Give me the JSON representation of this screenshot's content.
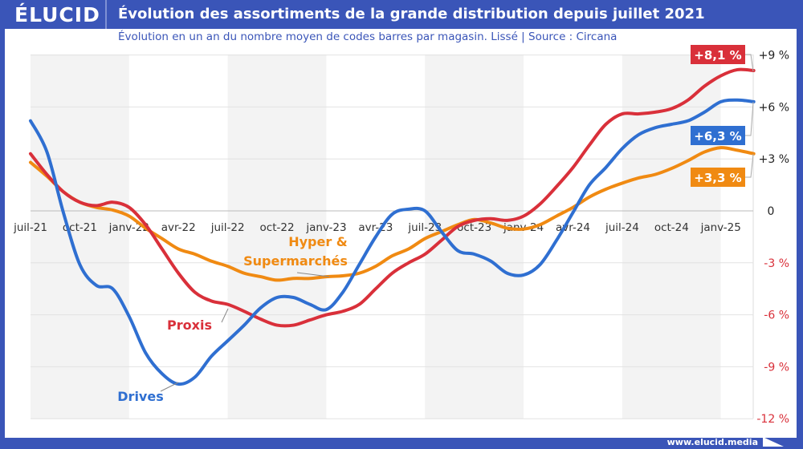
{
  "header": {
    "logo": "ÉLUCID",
    "title": "Évolution des assortiments de la grande distribution depuis juillet 2021"
  },
  "subtitle": "Évolution en un an du nombre moyen de codes barres par magasin. Lissé  |  Source : Circana",
  "footer": "www.elucid.media",
  "chart_data": {
    "type": "line",
    "title": "Évolution des assortiments de la grande distribution depuis juillet 2021",
    "subtitle": "Évolution en un an du nombre moyen de codes barres par magasin. Lissé  |  Source : Circana",
    "x_ticks": [
      "juil-21",
      "oct-21",
      "janv-22",
      "avr-22",
      "juil-22",
      "oct-22",
      "janv-23",
      "avr-23",
      "juil-23",
      "oct-23",
      "janv-24",
      "avr-24",
      "juil-24",
      "oct-24",
      "janv-25"
    ],
    "x_start": "juil-21",
    "x_end": "mars-25",
    "x_step": "month",
    "y_ticks": [
      "+9 %",
      "+6 %",
      "+3 %",
      "0",
      "-3 %",
      "-6 %",
      "-9 %",
      "-12 %"
    ],
    "ylim": [
      -12,
      9
    ],
    "y_axis_position": "right",
    "grid": true,
    "series": [
      {
        "name": "Drives",
        "color": "#2f6fd1",
        "end_label": "+6,3 %",
        "values": [
          5.2,
          3.4,
          -0.1,
          -3.1,
          -4.3,
          -4.5,
          -6.1,
          -8.2,
          -9.4,
          -10.0,
          -9.6,
          -8.4,
          -7.5,
          -6.6,
          -5.6,
          -5.0,
          -5.0,
          -5.4,
          -5.7,
          -4.7,
          -3.1,
          -1.5,
          -0.2,
          0.1,
          0.0,
          -1.2,
          -2.3,
          -2.5,
          -2.9,
          -3.6,
          -3.7,
          -3.1,
          -1.7,
          -0.1,
          1.5,
          2.5,
          3.6,
          4.4,
          4.8,
          5.0,
          5.2,
          5.7,
          6.3,
          6.4,
          6.3
        ]
      },
      {
        "name": "Proxis",
        "color": "#d9303a",
        "end_label": "+8,1 %",
        "values": [
          3.3,
          2.1,
          1.1,
          0.5,
          0.3,
          0.5,
          0.2,
          -0.8,
          -2.2,
          -3.6,
          -4.7,
          -5.2,
          -5.4,
          -5.8,
          -6.25,
          -6.6,
          -6.6,
          -6.3,
          -6.0,
          -5.8,
          -5.4,
          -4.5,
          -3.6,
          -3.0,
          -2.5,
          -1.7,
          -0.9,
          -0.55,
          -0.45,
          -0.55,
          -0.3,
          0.4,
          1.4,
          2.5,
          3.8,
          5.0,
          5.6,
          5.6,
          5.7,
          5.9,
          6.4,
          7.2,
          7.8,
          8.15,
          8.1
        ]
      },
      {
        "name": "Hyper & Supermarchés",
        "name_lines": [
          "Hyper &",
          "Supermarchés"
        ],
        "color": "#f08a12",
        "end_label": "+3,3 %",
        "values": [
          2.8,
          2.0,
          1.1,
          0.5,
          0.2,
          0.05,
          -0.3,
          -1.0,
          -1.6,
          -2.2,
          -2.5,
          -2.9,
          -3.2,
          -3.6,
          -3.8,
          -4.0,
          -3.9,
          -3.9,
          -3.8,
          -3.75,
          -3.6,
          -3.2,
          -2.6,
          -2.2,
          -1.6,
          -1.2,
          -0.8,
          -0.5,
          -0.7,
          -1.0,
          -1.05,
          -0.8,
          -0.3,
          0.2,
          0.8,
          1.25,
          1.6,
          1.9,
          2.1,
          2.45,
          2.9,
          3.4,
          3.65,
          3.5,
          3.3
        ]
      }
    ]
  }
}
